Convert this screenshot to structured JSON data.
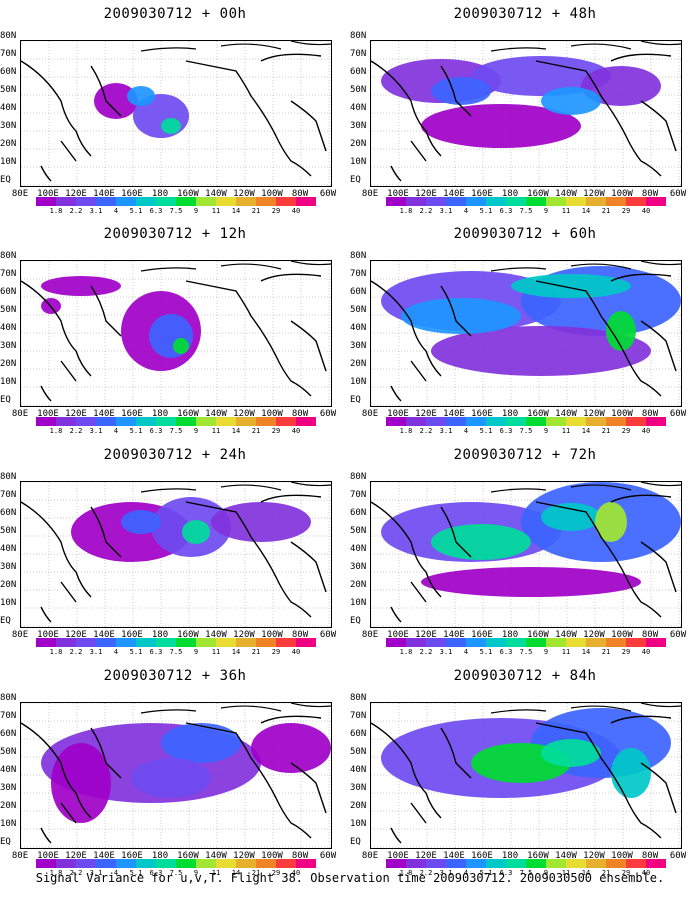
{
  "panels": [
    {
      "title": "2009030712 + 00h"
    },
    {
      "title": "2009030712 + 48h"
    },
    {
      "title": "2009030712 + 12h"
    },
    {
      "title": "2009030712 + 60h"
    },
    {
      "title": "2009030712 + 24h"
    },
    {
      "title": "2009030712 + 72h"
    },
    {
      "title": "2009030712 + 36h"
    },
    {
      "title": "2009030712 + 84h"
    }
  ],
  "lat_labels": [
    "80N",
    "70N",
    "60N",
    "50N",
    "40N",
    "30N",
    "20N",
    "10N",
    "EQ"
  ],
  "lon_labels": [
    "80E",
    "100E",
    "120E",
    "140E",
    "160E",
    "180",
    "160W",
    "140W",
    "120W",
    "100W",
    "80W",
    "60W"
  ],
  "colorbar": {
    "labels": [
      "1.8",
      "2.2",
      "3.1",
      "4",
      "5.1",
      "6.3",
      "7.5",
      "9",
      "11",
      "14",
      "21",
      "29",
      "40"
    ],
    "colors": [
      "#a000c8",
      "#8232dc",
      "#6e4bf0",
      "#3c64ff",
      "#1e96ff",
      "#00c8c8",
      "#00dc9b",
      "#00dc32",
      "#a0e632",
      "#e6dc32",
      "#e6af2d",
      "#f08228",
      "#fa3c3c",
      "#f00082"
    ]
  },
  "footer": "Signal Variance for u,v,T. Flight 38. Observation time 2009030712. 2009030500 ensemble."
}
